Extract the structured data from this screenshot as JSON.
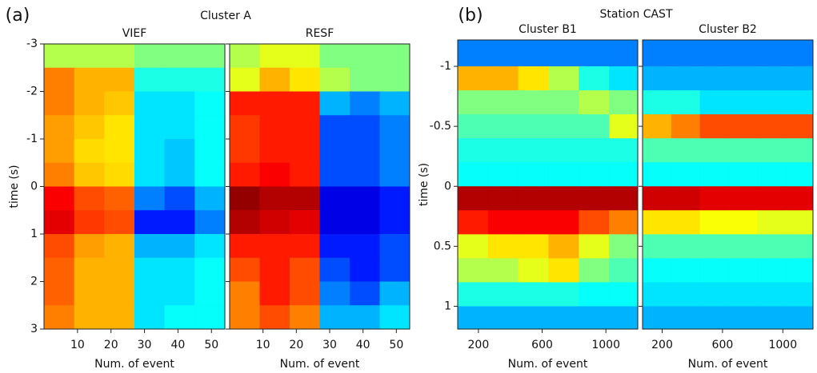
{
  "chart_data": [
    {
      "type": "heatmap",
      "label": "(a)",
      "title": "Cluster A",
      "ylabel": "time (s)",
      "xlabel": "Num. of event",
      "ylim": [
        -3,
        3
      ],
      "yticks": [
        -3,
        -2,
        -1,
        0,
        1,
        2,
        3
      ],
      "y_inverted": true,
      "xlim": [
        0,
        54
      ],
      "xticks": [
        10,
        20,
        30,
        40,
        50
      ],
      "xbins": [
        0,
        9,
        18,
        27,
        36,
        45,
        54
      ],
      "ybins": [
        -3,
        -2.5,
        -2,
        -1.5,
        -1,
        -0.5,
        0,
        0.5,
        1,
        1.5,
        2,
        2.5,
        3
      ],
      "colormap": "jet",
      "panels": [
        {
          "title": "VIEF",
          "z": [
            [
              0.55,
              0.55,
              0.55,
              0.5,
              0.5,
              0.5
            ],
            [
              0.75,
              0.7,
              0.7,
              0.4,
              0.4,
              0.4
            ],
            [
              0.75,
              0.7,
              0.68,
              0.35,
              0.35,
              0.38
            ],
            [
              0.72,
              0.68,
              0.65,
              0.35,
              0.35,
              0.38
            ],
            [
              0.72,
              0.66,
              0.65,
              0.35,
              0.32,
              0.38
            ],
            [
              0.75,
              0.68,
              0.66,
              0.35,
              0.32,
              0.38
            ],
            [
              0.88,
              0.8,
              0.78,
              0.25,
              0.2,
              0.3
            ],
            [
              0.9,
              0.82,
              0.8,
              0.15,
              0.15,
              0.25
            ],
            [
              0.8,
              0.72,
              0.7,
              0.3,
              0.3,
              0.35
            ],
            [
              0.78,
              0.7,
              0.7,
              0.35,
              0.35,
              0.38
            ],
            [
              0.78,
              0.7,
              0.7,
              0.35,
              0.35,
              0.38
            ],
            [
              0.75,
              0.7,
              0.7,
              0.35,
              0.38,
              0.38
            ]
          ]
        },
        {
          "title": "RESF",
          "z": [
            [
              0.55,
              0.6,
              0.6,
              0.5,
              0.5,
              0.5
            ],
            [
              0.6,
              0.7,
              0.65,
              0.55,
              0.5,
              0.5
            ],
            [
              0.85,
              0.85,
              0.85,
              0.3,
              0.25,
              0.3
            ],
            [
              0.82,
              0.85,
              0.85,
              0.2,
              0.2,
              0.25
            ],
            [
              0.82,
              0.85,
              0.85,
              0.2,
              0.2,
              0.25
            ],
            [
              0.85,
              0.88,
              0.85,
              0.2,
              0.2,
              0.25
            ],
            [
              0.98,
              0.95,
              0.95,
              0.1,
              0.1,
              0.15
            ],
            [
              0.95,
              0.92,
              0.9,
              0.1,
              0.1,
              0.15
            ],
            [
              0.85,
              0.85,
              0.85,
              0.15,
              0.15,
              0.2
            ],
            [
              0.8,
              0.85,
              0.8,
              0.2,
              0.15,
              0.2
            ],
            [
              0.75,
              0.85,
              0.8,
              0.25,
              0.2,
              0.3
            ],
            [
              0.75,
              0.8,
              0.75,
              0.3,
              0.3,
              0.35
            ]
          ]
        }
      ]
    },
    {
      "type": "heatmap",
      "label": "(b)",
      "title": "Station CAST",
      "ylabel": "time (s)",
      "xlabel": "Num. of event",
      "ylim": [
        -1.22,
        1.19
      ],
      "yticks": [
        -1,
        -0.5,
        0,
        0.5,
        1
      ],
      "y_inverted": true,
      "xlim": [
        70,
        1200
      ],
      "xticks": [
        200,
        600,
        1000
      ],
      "xbins": [
        70,
        260,
        450,
        640,
        830,
        1020,
        1200
      ],
      "ybins": [
        -1.22,
        -1,
        -0.8,
        -0.6,
        -0.4,
        -0.2,
        0,
        0.2,
        0.4,
        0.6,
        0.8,
        1,
        1.19
      ],
      "colormap": "jet",
      "panels": [
        {
          "title": "Cluster B1",
          "z": [
            [
              0.25,
              0.25,
              0.25,
              0.25,
              0.25,
              0.25
            ],
            [
              0.7,
              0.7,
              0.65,
              0.55,
              0.4,
              0.35
            ],
            [
              0.5,
              0.5,
              0.5,
              0.5,
              0.55,
              0.5
            ],
            [
              0.45,
              0.45,
              0.45,
              0.45,
              0.45,
              0.6
            ],
            [
              0.4,
              0.4,
              0.4,
              0.4,
              0.4,
              0.4
            ],
            [
              0.38,
              0.38,
              0.38,
              0.38,
              0.38,
              0.38
            ],
            [
              0.95,
              0.95,
              0.95,
              0.95,
              0.95,
              0.95
            ],
            [
              0.85,
              0.88,
              0.88,
              0.88,
              0.8,
              0.75
            ],
            [
              0.6,
              0.65,
              0.65,
              0.7,
              0.6,
              0.5
            ],
            [
              0.55,
              0.55,
              0.6,
              0.65,
              0.5,
              0.45
            ],
            [
              0.4,
              0.4,
              0.4,
              0.4,
              0.38,
              0.38
            ],
            [
              0.3,
              0.3,
              0.3,
              0.3,
              0.3,
              0.3
            ]
          ]
        },
        {
          "title": "Cluster B2",
          "z": [
            [
              0.25,
              0.25,
              0.25,
              0.25,
              0.25,
              0.25
            ],
            [
              0.3,
              0.3,
              0.3,
              0.3,
              0.3,
              0.3
            ],
            [
              0.4,
              0.4,
              0.35,
              0.35,
              0.35,
              0.35
            ],
            [
              0.7,
              0.75,
              0.8,
              0.8,
              0.8,
              0.8
            ],
            [
              0.45,
              0.45,
              0.45,
              0.45,
              0.45,
              0.45
            ],
            [
              0.38,
              0.38,
              0.38,
              0.38,
              0.38,
              0.38
            ],
            [
              0.92,
              0.92,
              0.9,
              0.9,
              0.9,
              0.9
            ],
            [
              0.65,
              0.65,
              0.62,
              0.62,
              0.6,
              0.6
            ],
            [
              0.45,
              0.45,
              0.45,
              0.45,
              0.45,
              0.45
            ],
            [
              0.38,
              0.38,
              0.38,
              0.38,
              0.38,
              0.38
            ],
            [
              0.35,
              0.35,
              0.35,
              0.35,
              0.35,
              0.35
            ],
            [
              0.3,
              0.3,
              0.3,
              0.3,
              0.3,
              0.3
            ]
          ]
        }
      ]
    }
  ]
}
